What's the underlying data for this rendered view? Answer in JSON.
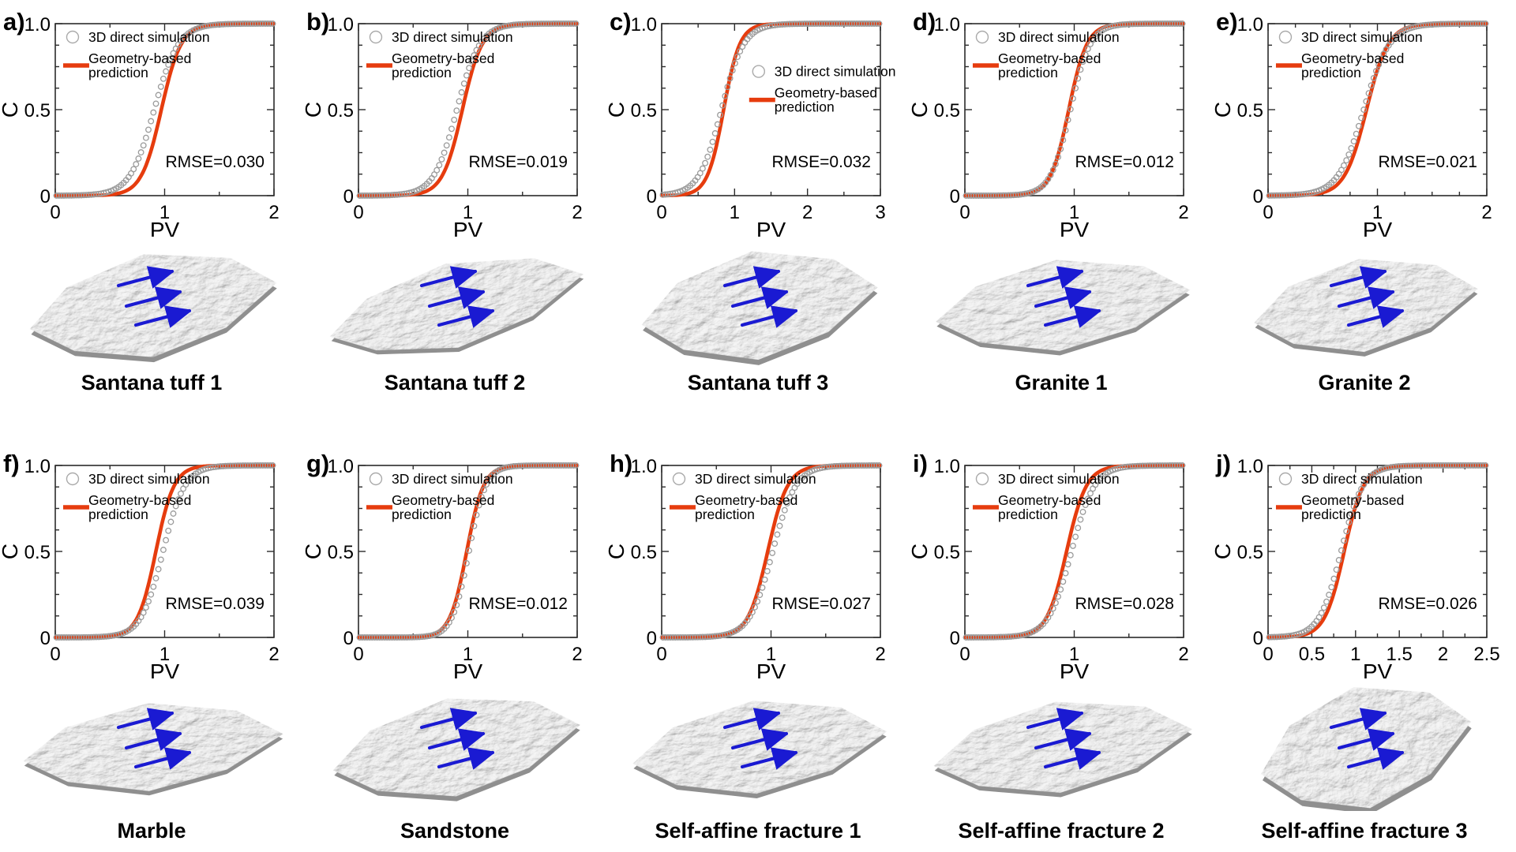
{
  "figure": {
    "title": "Breakthrough curves (C vs PV): 3D direct simulation vs geometry-based prediction for ten rough fracture surfaces",
    "background": "#ffffff",
    "colors": {
      "prediction_line": "#e63c0e",
      "simulation_marker": "#9b9b9b",
      "flow_arrow": "#1a1ad2",
      "axis": "#2b2b2b",
      "text": "#000000",
      "surface_base": "#bdbdbd",
      "surface_edge": "#8f8f8f"
    },
    "legend": {
      "sim_label": "3D direct simulation",
      "pred_label_line1": "Geometry-based",
      "pred_label_line2": "prediction"
    },
    "axes": {
      "xlabel": "PV",
      "ylabel": "C",
      "ylim": [
        0,
        1.0
      ],
      "ytick_values": [
        0,
        0.5,
        1.0
      ],
      "ytick_labels": [
        "0",
        "0.5",
        "1.0"
      ],
      "y_minor_step": 0.125
    }
  },
  "chart_data": [
    {
      "id": "a",
      "letter": "a)",
      "caption": "Santana tuff 1",
      "type": "line+scatter",
      "rmse_label": "RMSE=0.030",
      "rmse_value": 0.03,
      "xlim": [
        0,
        2
      ],
      "x_minor_step": 0.5,
      "legend_frac": [
        0.036,
        0.0
      ],
      "xticks": [
        {
          "v": 0,
          "label": "0"
        },
        {
          "v": 1,
          "label": "1"
        },
        {
          "v": 2,
          "label": "2"
        }
      ],
      "anchor_C": [
        0.05,
        0.1,
        0.25,
        0.5,
        0.75,
        0.9,
        0.95
      ],
      "series": [
        {
          "name": "Geometry-based prediction",
          "style": "line",
          "model": "logistic",
          "x0": 0.97,
          "k": 11,
          "anchor_PV": [
            0.7,
            0.77,
            0.87,
            0.97,
            1.07,
            1.17,
            1.24
          ]
        },
        {
          "name": "3D direct simulation",
          "style": "scatter",
          "model": "logistic",
          "x0": 0.905,
          "k": 9,
          "anchor_PV": [
            0.58,
            0.66,
            0.78,
            0.91,
            1.03,
            1.15,
            1.23
          ]
        }
      ]
    },
    {
      "id": "b",
      "letter": "b)",
      "caption": "Santana tuff 2",
      "type": "line+scatter",
      "rmse_label": "RMSE=0.019",
      "rmse_value": 0.019,
      "xlim": [
        0,
        2
      ],
      "x_minor_step": 0.5,
      "legend_frac": [
        0.036,
        0.0
      ],
      "xticks": [
        {
          "v": 0,
          "label": "0"
        },
        {
          "v": 1,
          "label": "1"
        },
        {
          "v": 2,
          "label": "2"
        }
      ],
      "anchor_C": [
        0.05,
        0.1,
        0.25,
        0.5,
        0.75,
        0.9,
        0.95
      ],
      "series": [
        {
          "name": "Geometry-based prediction",
          "style": "line",
          "model": "logistic",
          "x0": 0.95,
          "k": 11,
          "anchor_PV": [
            0.68,
            0.75,
            0.85,
            0.95,
            1.05,
            1.15,
            1.22
          ]
        },
        {
          "name": "3D direct simulation",
          "style": "scatter",
          "model": "logistic",
          "x0": 0.9,
          "k": 9.5,
          "anchor_PV": [
            0.59,
            0.67,
            0.78,
            0.9,
            1.02,
            1.13,
            1.21
          ]
        }
      ]
    },
    {
      "id": "c",
      "letter": "c)",
      "caption": "Santana tuff 3",
      "type": "line+scatter",
      "rmse_label": "RMSE=0.032",
      "rmse_value": 0.032,
      "xlim": [
        0,
        3
      ],
      "x_minor_step": 0.5,
      "legend_frac": [
        0.4,
        0.2
      ],
      "xticks": [
        {
          "v": 0,
          "label": "0"
        },
        {
          "v": 1,
          "label": "1"
        },
        {
          "v": 2,
          "label": "2"
        },
        {
          "v": 3,
          "label": "3"
        }
      ],
      "anchor_C": [
        0.05,
        0.1,
        0.25,
        0.5,
        0.75,
        0.9,
        0.95
      ],
      "series": [
        {
          "name": "Geometry-based prediction",
          "style": "line",
          "model": "logistic",
          "x0": 0.85,
          "k": 9,
          "anchor_PV": [
            0.52,
            0.61,
            0.73,
            0.85,
            0.97,
            1.09,
            1.18
          ]
        },
        {
          "name": "3D direct simulation",
          "style": "scatter",
          "model": "logistic",
          "x0": 0.82,
          "k": 6.5,
          "anchor_PV": [
            0.37,
            0.48,
            0.65,
            0.82,
            0.99,
            1.16,
            1.27
          ]
        }
      ]
    },
    {
      "id": "d",
      "letter": "d)",
      "caption": "Granite 1",
      "type": "line+scatter",
      "rmse_label": "RMSE=0.012",
      "rmse_value": 0.012,
      "xlim": [
        0,
        2
      ],
      "x_minor_step": 0.5,
      "legend_frac": [
        0.036,
        0.0
      ],
      "xticks": [
        {
          "v": 0,
          "label": "0"
        },
        {
          "v": 1,
          "label": "1"
        },
        {
          "v": 2,
          "label": "2"
        }
      ],
      "anchor_C": [
        0.05,
        0.1,
        0.25,
        0.5,
        0.75,
        0.9,
        0.95
      ],
      "series": [
        {
          "name": "Geometry-based prediction",
          "style": "line",
          "model": "logistic",
          "x0": 0.95,
          "k": 12,
          "anchor_PV": [
            0.71,
            0.77,
            0.86,
            0.95,
            1.04,
            1.13,
            1.2
          ]
        },
        {
          "name": "3D direct simulation",
          "style": "scatter",
          "model": "logistic",
          "x0": 0.965,
          "k": 11,
          "anchor_PV": [
            0.7,
            0.77,
            0.87,
            0.97,
            1.06,
            1.16,
            1.23
          ]
        }
      ]
    },
    {
      "id": "e",
      "letter": "e)",
      "caption": "Granite 2",
      "type": "line+scatter",
      "rmse_label": "RMSE=0.021",
      "rmse_value": 0.021,
      "xlim": [
        0,
        2
      ],
      "x_minor_step": 0.25,
      "legend_frac": [
        0.036,
        0.0
      ],
      "xticks": [
        {
          "v": 0,
          "label": "0"
        },
        {
          "v": 1,
          "label": "1"
        },
        {
          "v": 2,
          "label": "2"
        }
      ],
      "anchor_C": [
        0.05,
        0.1,
        0.25,
        0.5,
        0.75,
        0.9,
        0.95
      ],
      "series": [
        {
          "name": "Geometry-based prediction",
          "style": "line",
          "model": "logistic",
          "x0": 0.9,
          "k": 10,
          "anchor_PV": [
            0.61,
            0.68,
            0.79,
            0.9,
            1.01,
            1.12,
            1.19
          ]
        },
        {
          "name": "3D direct simulation",
          "style": "scatter",
          "model": "logistic",
          "x0": 0.875,
          "k": 8.5,
          "anchor_PV": [
            0.53,
            0.62,
            0.75,
            0.88,
            1.0,
            1.13,
            1.22
          ]
        }
      ]
    },
    {
      "id": "f",
      "letter": "f)",
      "caption": "Marble",
      "type": "line+scatter",
      "rmse_label": "RMSE=0.039",
      "rmse_value": 0.039,
      "xlim": [
        0,
        2
      ],
      "x_minor_step": 0.5,
      "legend_frac": [
        0.036,
        0.0
      ],
      "xticks": [
        {
          "v": 0,
          "label": "0"
        },
        {
          "v": 1,
          "label": "1"
        },
        {
          "v": 2,
          "label": "2"
        }
      ],
      "anchor_C": [
        0.05,
        0.1,
        0.25,
        0.5,
        0.75,
        0.9,
        0.95
      ],
      "series": [
        {
          "name": "Geometry-based prediction",
          "style": "line",
          "model": "logistic",
          "x0": 0.92,
          "k": 12,
          "anchor_PV": [
            0.68,
            0.74,
            0.83,
            0.92,
            1.01,
            1.1,
            1.17
          ]
        },
        {
          "name": "3D direct simulation",
          "style": "scatter",
          "model": "logistic",
          "x0": 0.985,
          "k": 10,
          "anchor_PV": [
            0.69,
            0.77,
            0.88,
            0.99,
            1.1,
            1.21,
            1.28
          ]
        }
      ]
    },
    {
      "id": "g",
      "letter": "g)",
      "caption": "Sandstone",
      "type": "line+scatter",
      "rmse_label": "RMSE=0.012",
      "rmse_value": 0.012,
      "xlim": [
        0,
        2
      ],
      "x_minor_step": 0.5,
      "legend_frac": [
        0.036,
        0.0
      ],
      "xticks": [
        {
          "v": 0,
          "label": "0"
        },
        {
          "v": 1,
          "label": "1"
        },
        {
          "v": 2,
          "label": "2"
        }
      ],
      "anchor_C": [
        0.05,
        0.1,
        0.25,
        0.5,
        0.75,
        0.9,
        0.95
      ],
      "series": [
        {
          "name": "Geometry-based prediction",
          "style": "line",
          "model": "logistic",
          "x0": 0.99,
          "k": 13,
          "anchor_PV": [
            0.76,
            0.82,
            0.91,
            0.99,
            1.08,
            1.16,
            1.22
          ]
        },
        {
          "name": "3D direct simulation",
          "style": "scatter",
          "model": "logistic",
          "x0": 1.01,
          "k": 13,
          "anchor_PV": [
            0.78,
            0.84,
            0.93,
            1.01,
            1.09,
            1.18,
            1.24
          ]
        }
      ]
    },
    {
      "id": "h",
      "letter": "h)",
      "caption": "Self-affine fracture 1",
      "type": "line+scatter",
      "rmse_label": "RMSE=0.027",
      "rmse_value": 0.027,
      "xlim": [
        0,
        2
      ],
      "x_minor_step": 0.5,
      "legend_frac": [
        0.036,
        0.0
      ],
      "xticks": [
        {
          "v": 0,
          "label": "0"
        },
        {
          "v": 1,
          "label": "1"
        },
        {
          "v": 2,
          "label": "2"
        }
      ],
      "anchor_C": [
        0.05,
        0.1,
        0.25,
        0.5,
        0.75,
        0.9,
        0.95
      ],
      "series": [
        {
          "name": "Geometry-based prediction",
          "style": "line",
          "model": "logistic",
          "x0": 0.97,
          "k": 11,
          "anchor_PV": [
            0.7,
            0.77,
            0.87,
            0.97,
            1.07,
            1.17,
            1.24
          ]
        },
        {
          "name": "3D direct simulation",
          "style": "scatter",
          "model": "logistic",
          "x0": 1.015,
          "k": 9.5,
          "anchor_PV": [
            0.71,
            0.78,
            0.9,
            1.02,
            1.13,
            1.25,
            1.32
          ]
        }
      ]
    },
    {
      "id": "i",
      "letter": "i)",
      "caption": "Self-affine fracture 2",
      "type": "line+scatter",
      "rmse_label": "RMSE=0.028",
      "rmse_value": 0.028,
      "xlim": [
        0,
        2
      ],
      "x_minor_step": 0.5,
      "legend_frac": [
        0.036,
        0.0
      ],
      "xticks": [
        {
          "v": 0,
          "label": "0"
        },
        {
          "v": 1,
          "label": "1"
        },
        {
          "v": 2,
          "label": "2"
        }
      ],
      "anchor_C": [
        0.05,
        0.1,
        0.25,
        0.5,
        0.75,
        0.9,
        0.95
      ],
      "series": [
        {
          "name": "Geometry-based prediction",
          "style": "line",
          "model": "logistic",
          "x0": 0.93,
          "k": 11,
          "anchor_PV": [
            0.66,
            0.73,
            0.83,
            0.93,
            1.03,
            1.13,
            1.2
          ]
        },
        {
          "name": "3D direct simulation",
          "style": "scatter",
          "model": "logistic",
          "x0": 0.975,
          "k": 9.5,
          "anchor_PV": [
            0.67,
            0.74,
            0.86,
            0.98,
            1.09,
            1.21,
            1.28
          ]
        }
      ]
    },
    {
      "id": "j",
      "letter": "j)",
      "caption": "Self-affine fracture 3",
      "type": "line+scatter",
      "rmse_label": "RMSE=0.026",
      "rmse_value": 0.026,
      "xlim": [
        0,
        2.5
      ],
      "x_minor_step": 0.25,
      "legend_frac": [
        0.036,
        0.0
      ],
      "xticks": [
        {
          "v": 0,
          "label": "0"
        },
        {
          "v": 0.5,
          "label": "0.5"
        },
        {
          "v": 1,
          "label": "1"
        },
        {
          "v": 1.5,
          "label": "1.5"
        },
        {
          "v": 2,
          "label": "2"
        },
        {
          "v": 2.5,
          "label": "2.5"
        }
      ],
      "anchor_C": [
        0.05,
        0.1,
        0.25,
        0.5,
        0.75,
        0.9,
        0.95
      ],
      "series": [
        {
          "name": "Geometry-based prediction",
          "style": "line",
          "model": "logistic",
          "x0": 0.87,
          "k": 9,
          "anchor_PV": [
            0.54,
            0.63,
            0.75,
            0.87,
            0.99,
            1.11,
            1.2
          ]
        },
        {
          "name": "3D direct simulation",
          "style": "scatter",
          "model": "logistic",
          "x0": 0.835,
          "k": 8,
          "anchor_PV": [
            0.47,
            0.56,
            0.7,
            0.84,
            0.97,
            1.11,
            1.2
          ]
        }
      ]
    }
  ]
}
